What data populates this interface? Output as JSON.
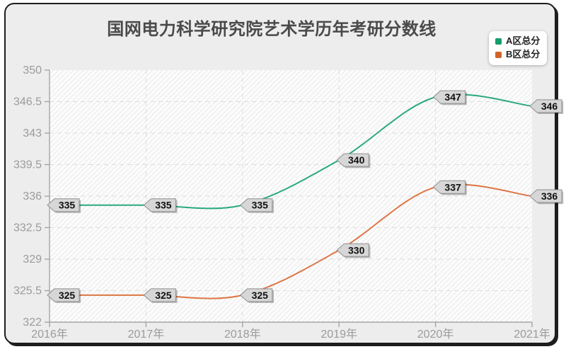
{
  "title": "国网电力科学研究院艺术学历年考研分数线",
  "legend": {
    "items": [
      {
        "label": "A区总分",
        "color": "#159c68"
      },
      {
        "label": "B区总分",
        "color": "#d2622d"
      }
    ]
  },
  "colors": {
    "series_a_line": "#2aa97e",
    "series_b_line": "#dd7544",
    "badge_fill": "#d7d7d7",
    "badge_border": "#8f8f8f",
    "badge_text": "#111111",
    "axis_line": "#a5a5a5",
    "tick_label": "#9b9b9b",
    "gridline": "#dcdcdc",
    "plot_background": "#fcfcfc",
    "hatch_line": "#e9e9e9",
    "card_background": "#ededed",
    "card_border": "#1e1e1e",
    "title_text": "#4a4a4a"
  },
  "chart_data": {
    "type": "line",
    "smooth": true,
    "point_labels": true,
    "grid": true,
    "legend_position": "top-right",
    "categories": [
      "2016年",
      "2017年",
      "2018年",
      "2019年",
      "2020年",
      "2021年"
    ],
    "series": [
      {
        "name": "A区总分",
        "color": "#2aa97e",
        "values": [
          335,
          335,
          335,
          340,
          347,
          346
        ]
      },
      {
        "name": "B区总分",
        "color": "#dd7544",
        "values": [
          325,
          325,
          325,
          330,
          337,
          336
        ]
      }
    ],
    "ylim": [
      322,
      350
    ],
    "yticks": [
      322,
      325.5,
      329,
      332.5,
      336,
      339.5,
      343,
      346.5,
      350
    ],
    "title": "国网电力科学研究院艺术学历年考研分数线",
    "xlabel": "",
    "ylabel": ""
  }
}
